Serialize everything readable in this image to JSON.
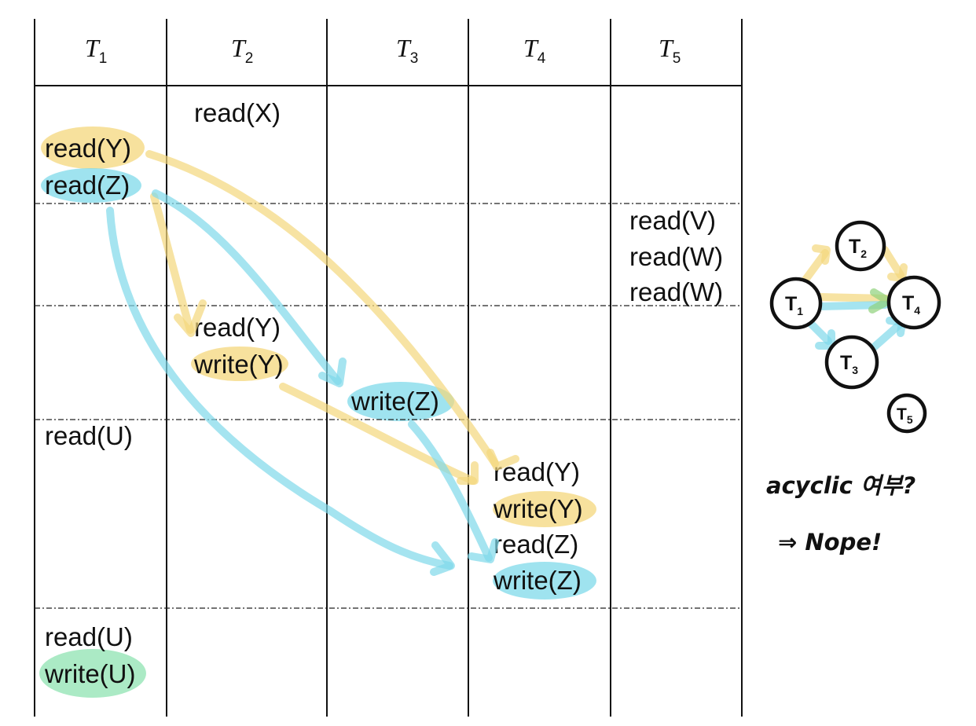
{
  "colors": {
    "yellow": "#f4d77c",
    "blue": "#7fd9ea",
    "green": "#8fe3b1",
    "ink": "#111111"
  },
  "headers": [
    {
      "letter": "T",
      "sub": "1"
    },
    {
      "letter": "T",
      "sub": "2"
    },
    {
      "letter": "T",
      "sub": "3"
    },
    {
      "letter": "T",
      "sub": "4"
    },
    {
      "letter": "T",
      "sub": "5"
    }
  ],
  "schedule": {
    "T2_read_x": "read(X)",
    "T1_read_y": "read(Y)",
    "T1_read_z": "read(Z)",
    "T5_read_v": "read(V)",
    "T5_read_w1": "read(W)",
    "T5_read_w2": "read(W)",
    "T2_read_y": "read(Y)",
    "T2_write_y": "write(Y)",
    "T3_write_z": "write(Z)",
    "T1_read_u1": "read(U)",
    "T4_read_y": "read(Y)",
    "T4_write_y": "write(Y)",
    "T4_read_z": "read(Z)",
    "T4_write_z": "write(Z)",
    "T1_read_u2": "read(U)",
    "T1_write_u": "write(U)"
  },
  "graph": {
    "nodes": [
      {
        "id": "t1",
        "label": "T",
        "sub": "1"
      },
      {
        "id": "t2",
        "label": "T",
        "sub": "2"
      },
      {
        "id": "t3",
        "label": "T",
        "sub": "3"
      },
      {
        "id": "t4",
        "label": "T",
        "sub": "4"
      },
      {
        "id": "t5",
        "label": "T",
        "sub": "5"
      }
    ],
    "edges": [
      {
        "from": "t1",
        "to": "t2",
        "color": "yellow"
      },
      {
        "from": "t2",
        "to": "t4",
        "color": "yellow"
      },
      {
        "from": "t1",
        "to": "t4",
        "color": "yellow"
      },
      {
        "from": "t1",
        "to": "t4",
        "color": "blue"
      },
      {
        "from": "t1",
        "to": "t3",
        "color": "blue"
      },
      {
        "from": "t3",
        "to": "t4",
        "color": "blue"
      }
    ]
  },
  "notes": {
    "question": "acyclic 여부?",
    "answer": "⇒ Nope!"
  }
}
